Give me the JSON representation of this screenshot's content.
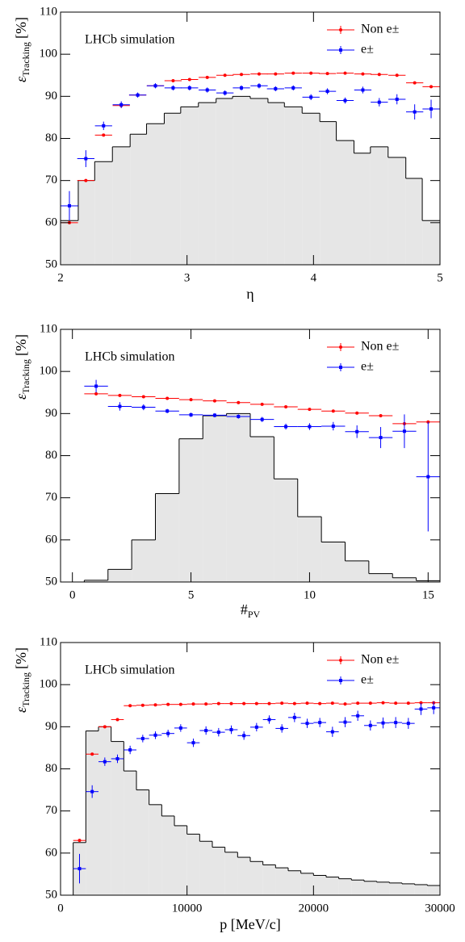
{
  "chart_data": [
    {
      "type": "errorbar",
      "annotation": "LHCb simulation",
      "legend": "upper right",
      "xlabel": "η",
      "ylabel": {
        "symbol": "ε",
        "subscript": "Tracking",
        "unit": "[%]"
      },
      "xlim": [
        2,
        5
      ],
      "ylim": [
        50,
        110
      ],
      "xticks": [
        2,
        3,
        4,
        5
      ],
      "yticks": [
        50,
        60,
        70,
        80,
        90,
        100,
        110
      ],
      "x": [
        2.07,
        2.2,
        2.34,
        2.48,
        2.61,
        2.75,
        2.89,
        3.02,
        3.16,
        3.3,
        3.43,
        3.57,
        3.7,
        3.84,
        3.98,
        4.11,
        4.25,
        4.39,
        4.52,
        4.66,
        4.8,
        4.93
      ],
      "xerr": 0.068,
      "histogram": {
        "color": "#e6e6e6",
        "bins": [
          2,
          2.14,
          2.27,
          2.41,
          2.55,
          2.68,
          2.82,
          2.95,
          3.09,
          3.23,
          3.36,
          3.5,
          3.64,
          3.77,
          3.91,
          4.05,
          4.18,
          4.32,
          4.45,
          4.59,
          4.73,
          4.86,
          5
        ],
        "counts": [
          60.5,
          70,
          74.5,
          78,
          81,
          83.5,
          86,
          87.5,
          88.5,
          89.5,
          90,
          89.5,
          88.5,
          87.5,
          86,
          84,
          79.5,
          76.5,
          78,
          75.5,
          70.5,
          60.5
        ]
      },
      "series": [
        {
          "name": "Non e±",
          "color": "#ff0000",
          "marker": "circle",
          "values": [
            60,
            70,
            80.8,
            87.8,
            90.3,
            92.5,
            93.7,
            94,
            94.5,
            95,
            95.2,
            95.3,
            95.3,
            95.5,
            95.5,
            95.4,
            95.5,
            95.3,
            95.2,
            95,
            93.2,
            92.3
          ]
        },
        {
          "name": "e±",
          "color": "#0000ff",
          "marker": "square",
          "values": [
            64,
            75.2,
            83,
            88,
            90.3,
            92.5,
            92,
            92,
            91.5,
            90.8,
            92,
            92.5,
            91.8,
            92,
            89.8,
            91.2,
            89,
            91.5,
            88.6,
            89.3,
            86.3,
            87
          ],
          "yerr": [
            3.5,
            2,
            1,
            0.8,
            0.6,
            0.6,
            0.6,
            0.6,
            0.6,
            0.6,
            0.6,
            0.6,
            0.6,
            0.6,
            0.7,
            0.7,
            0.7,
            0.8,
            1,
            1.2,
            1.8,
            2.2
          ]
        }
      ]
    },
    {
      "type": "errorbar",
      "annotation": "LHCb simulation",
      "legend": "upper right",
      "xlabel": {
        "symbol": "#",
        "subscript": "PV"
      },
      "ylabel": {
        "symbol": "ε",
        "subscript": "Tracking",
        "unit": "[%]"
      },
      "xlim": [
        -0.5,
        15.5
      ],
      "ylim": [
        50,
        110
      ],
      "xticks": [
        0,
        5,
        10,
        15
      ],
      "yticks": [
        50,
        60,
        70,
        80,
        90,
        100,
        110
      ],
      "x": [
        1,
        2,
        3,
        4,
        5,
        6,
        7,
        8,
        9,
        10,
        11,
        12,
        13,
        14,
        15
      ],
      "xerr": 0.5,
      "histogram": {
        "color": "#e6e6e6",
        "bins": [
          0.5,
          1.5,
          2.5,
          3.5,
          4.5,
          5.5,
          6.5,
          7.5,
          8.5,
          9.5,
          10.5,
          11.5,
          12.5,
          13.5,
          14.5,
          15.5
        ],
        "counts": [
          50.4,
          53,
          60,
          71,
          84,
          89.5,
          90,
          84.5,
          74.5,
          65.5,
          59.5,
          55,
          52,
          51,
          50.3
        ]
      },
      "series": [
        {
          "name": "Non e±",
          "color": "#ff0000",
          "marker": "circle",
          "values": [
            94.7,
            94.3,
            94,
            93.6,
            93.3,
            93,
            92.6,
            92.2,
            91.6,
            91,
            90.6,
            90.1,
            89.5,
            87.6,
            88
          ]
        },
        {
          "name": "e±",
          "color": "#0000ff",
          "marker": "square",
          "values": [
            96.5,
            91.7,
            91.5,
            90.6,
            89.7,
            89.6,
            89.3,
            88.6,
            86.9,
            86.9,
            87,
            85.7,
            84.3,
            85.8,
            75
          ],
          "yerr": [
            1.5,
            1,
            0.7,
            0.5,
            0.5,
            0.5,
            0.5,
            0.6,
            0.7,
            0.8,
            1,
            1.5,
            2.5,
            4,
            13
          ]
        }
      ]
    },
    {
      "type": "errorbar",
      "annotation": "LHCb simulation",
      "legend": "upper right",
      "xlabel": "p [MeV/c]",
      "ylabel": {
        "symbol": "ε",
        "subscript": "Tracking",
        "unit": "[%]"
      },
      "xlim": [
        0,
        30000
      ],
      "ylim": [
        50,
        110
      ],
      "xticks": [
        0,
        10000,
        20000,
        30000
      ],
      "yticks": [
        50,
        60,
        70,
        80,
        90,
        100,
        110
      ],
      "x": [
        1500,
        2500,
        3500,
        4500,
        5500,
        6500,
        7500,
        8500,
        9500,
        10500,
        11500,
        12500,
        13500,
        14500,
        15500,
        16500,
        17500,
        18500,
        19500,
        20500,
        21500,
        22500,
        23500,
        24500,
        25500,
        26500,
        27500,
        28500,
        29500
      ],
      "xerr": 500,
      "histogram": {
        "color": "#e6e6e6",
        "bins": [
          1000,
          2000,
          3000,
          4000,
          5000,
          6000,
          7000,
          8000,
          9000,
          10000,
          11000,
          12000,
          13000,
          14000,
          15000,
          16000,
          17000,
          18000,
          19000,
          20000,
          21000,
          22000,
          23000,
          24000,
          25000,
          26000,
          27000,
          28000,
          29000,
          30000
        ],
        "counts": [
          62.5,
          89,
          90,
          86.5,
          79.5,
          75,
          71.5,
          68.8,
          66.5,
          64.5,
          62.8,
          61.4,
          60.2,
          59,
          58,
          57.2,
          56.5,
          55.8,
          55.2,
          54.7,
          54.3,
          53.9,
          53.6,
          53.3,
          53.1,
          52.9,
          52.7,
          52.5,
          52.3
        ]
      },
      "series": [
        {
          "name": "Non e±",
          "color": "#ff0000",
          "marker": "circle",
          "values": [
            63,
            83.5,
            90,
            91.7,
            95,
            95.1,
            95.2,
            95.3,
            95.3,
            95.4,
            95.4,
            95.5,
            95.5,
            95.5,
            95.5,
            95.5,
            95.6,
            95.5,
            95.6,
            95.5,
            95.6,
            95.4,
            95.6,
            95.6,
            95.7,
            95.6,
            95.6,
            95.7,
            95.7
          ]
        },
        {
          "name": "e±",
          "color": "#0000ff",
          "marker": "square",
          "values": [
            56.3,
            74.6,
            81.7,
            82.4,
            84.5,
            87.2,
            88,
            88.4,
            89.7,
            86.2,
            89.1,
            88.7,
            89.3,
            87.9,
            89.9,
            91.7,
            89.6,
            92.2,
            90.8,
            91,
            88.8,
            91.1,
            92.6,
            90.3,
            90.9,
            91,
            90.8,
            94.2,
            94.5
          ],
          "yerr": [
            3.5,
            1.5,
            1,
            1,
            1,
            0.9,
            0.9,
            0.9,
            0.9,
            1,
            1,
            1,
            1,
            1,
            1,
            1,
            1,
            1.1,
            1.1,
            1.1,
            1.2,
            1.2,
            1.2,
            1.2,
            1.3,
            1.3,
            1.3,
            1.4,
            1.5
          ]
        }
      ]
    }
  ]
}
